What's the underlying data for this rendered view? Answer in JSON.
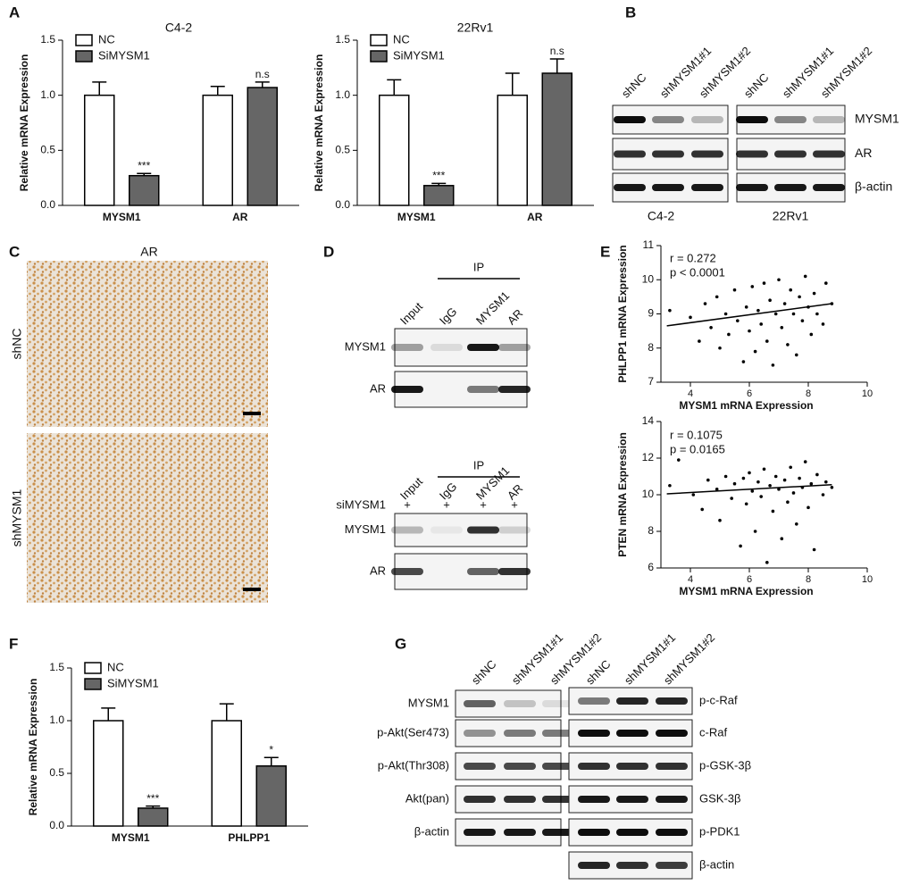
{
  "chart_data": [
    {
      "type": "bar",
      "title": "C4-2",
      "y_label": "Relative mRNA Expression",
      "categories": [
        "MYSM1",
        "AR"
      ],
      "series": [
        {
          "name": "NC",
          "color": "#ffffff",
          "values": [
            1.0,
            1.0
          ],
          "errors": [
            0.12,
            0.08
          ]
        },
        {
          "name": "SiMYSM1",
          "color": "#666666",
          "values": [
            0.27,
            1.07
          ],
          "errors": [
            0.02,
            0.05
          ],
          "annotations": [
            "***",
            "n.s"
          ]
        }
      ],
      "ylim": [
        0,
        1.5
      ],
      "yticks": [
        {
          "value": 0,
          "label": "0.0"
        },
        {
          "value": 0.5,
          "label": "0.5"
        },
        {
          "value": 1,
          "label": "1.0"
        },
        {
          "value": 1.5,
          "label": "1.5"
        }
      ]
    },
    {
      "type": "bar",
      "title": "22Rv1",
      "y_label": "Relative mRNA Expression",
      "categories": [
        "MYSM1",
        "AR"
      ],
      "series": [
        {
          "name": "NC",
          "color": "#ffffff",
          "values": [
            1.0,
            1.0
          ],
          "errors": [
            0.14,
            0.2
          ]
        },
        {
          "name": "SiMYSM1",
          "color": "#666666",
          "values": [
            0.18,
            1.2
          ],
          "errors": [
            0.02,
            0.13
          ],
          "annotations": [
            "***",
            "n.s"
          ]
        }
      ],
      "ylim": [
        0,
        1.5
      ],
      "yticks": [
        {
          "value": 0,
          "label": "0.0"
        },
        {
          "value": 0.5,
          "label": "0.5"
        },
        {
          "value": 1,
          "label": "1.0"
        },
        {
          "value": 1.5,
          "label": "1.5"
        }
      ]
    },
    {
      "type": "scatter",
      "x_label": "MYSM1 mRNA Expression",
      "y_label": "PHLPP1 mRNA Expression",
      "annotations": [
        "r = 0.272",
        "p < 0.0001"
      ],
      "color": "#000000",
      "x": [
        3.3,
        4.0,
        4.3,
        4.5,
        4.7,
        4.9,
        5.0,
        5.2,
        5.3,
        5.5,
        5.6,
        5.8,
        5.9,
        6.0,
        6.1,
        6.2,
        6.3,
        6.4,
        6.5,
        6.6,
        6.7,
        6.8,
        6.9,
        7.0,
        7.1,
        7.2,
        7.3,
        7.4,
        7.5,
        7.6,
        7.7,
        7.8,
        7.9,
        8.0,
        8.1,
        8.2,
        8.3,
        8.5,
        8.6,
        8.8
      ],
      "y": [
        9.1,
        8.9,
        8.2,
        9.3,
        8.6,
        9.5,
        8.0,
        9.0,
        8.4,
        9.7,
        8.8,
        7.6,
        9.2,
        8.5,
        9.8,
        7.9,
        9.1,
        8.7,
        9.9,
        8.2,
        9.4,
        7.5,
        9.0,
        10.0,
        8.6,
        9.3,
        8.1,
        9.7,
        9.0,
        7.8,
        9.5,
        8.8,
        10.1,
        9.2,
        8.4,
        9.6,
        9.0,
        8.7,
        9.9,
        9.3
      ],
      "trend": {
        "x": [
          3.2,
          8.8
        ],
        "y": [
          8.65,
          9.3
        ]
      },
      "xlim": [
        3,
        10
      ],
      "ylim": [
        7,
        11
      ],
      "xticks": [
        4,
        6,
        8,
        10
      ],
      "yticks": [
        7,
        8,
        9,
        10,
        11
      ]
    },
    {
      "type": "scatter",
      "x_label": "MYSM1 mRNA Expression",
      "y_label": "PTEN mRNA Expression",
      "annotations": [
        "r = 0.1075",
        "p = 0.0165"
      ],
      "color": "#000000",
      "x": [
        3.3,
        3.6,
        4.1,
        4.4,
        4.6,
        4.9,
        5.0,
        5.2,
        5.4,
        5.5,
        5.7,
        5.8,
        5.9,
        6.0,
        6.1,
        6.2,
        6.3,
        6.4,
        6.5,
        6.6,
        6.7,
        6.8,
        6.9,
        7.0,
        7.1,
        7.2,
        7.3,
        7.4,
        7.5,
        7.6,
        7.7,
        7.8,
        7.9,
        8.0,
        8.1,
        8.2,
        8.3,
        8.5,
        8.6,
        8.8
      ],
      "y": [
        10.5,
        11.9,
        10.0,
        9.2,
        10.8,
        10.3,
        8.6,
        11.0,
        9.8,
        10.6,
        7.2,
        10.9,
        9.5,
        11.2,
        10.2,
        8.0,
        10.7,
        9.9,
        11.4,
        6.3,
        10.5,
        9.1,
        11.0,
        10.3,
        7.6,
        10.8,
        9.6,
        11.5,
        10.1,
        8.4,
        10.9,
        10.4,
        11.8,
        9.3,
        10.6,
        7.0,
        11.1,
        10.0,
        10.7,
        10.4
      ],
      "trend": {
        "x": [
          3.2,
          8.8
        ],
        "y": [
          10.05,
          10.55
        ]
      },
      "xlim": [
        3,
        10
      ],
      "ylim": [
        6,
        14
      ],
      "xticks": [
        4,
        6,
        8,
        10
      ],
      "yticks": [
        6,
        8,
        10,
        12,
        14
      ]
    },
    {
      "type": "bar",
      "y_label": "Relative mRNA Expression",
      "categories": [
        "MYSM1",
        "PHLPP1"
      ],
      "series": [
        {
          "name": "NC",
          "color": "#ffffff",
          "values": [
            1.0,
            1.0
          ],
          "errors": [
            0.12,
            0.16
          ]
        },
        {
          "name": "SiMYSM1",
          "color": "#666666",
          "values": [
            0.17,
            0.57
          ],
          "errors": [
            0.02,
            0.08
          ],
          "annotations": [
            "***",
            "*"
          ]
        }
      ],
      "ylim": [
        0,
        1.5
      ],
      "yticks": [
        {
          "value": 0,
          "label": "0.0"
        },
        {
          "value": 0.5,
          "label": "0.5"
        },
        {
          "value": 1,
          "label": "1.0"
        },
        {
          "value": 1.5,
          "label": "1.5"
        }
      ]
    }
  ],
  "figure": {
    "panel_letters": [
      "A",
      "B",
      "C",
      "D",
      "E",
      "F",
      "G"
    ],
    "B": {
      "lanes": [
        "shNC",
        "shMYSM1#1",
        "shMYSM1#2",
        "shNC",
        "shMYSM1#1",
        "shMYSM1#2"
      ],
      "proteins": [
        "MYSM1",
        "AR",
        "β-actin"
      ],
      "cell_lines": [
        "C4-2",
        "22Rv1"
      ]
    },
    "C": {
      "title": "AR",
      "rows": [
        "shNC",
        "shMYSM1"
      ]
    },
    "D": {
      "ip": "IP",
      "lanes": [
        "Input",
        "IgG",
        "MYSM1",
        "AR"
      ],
      "proteins": [
        "MYSM1",
        "AR"
      ],
      "treatment": "siMYSM1",
      "treatment_marks": [
        "+",
        "+",
        "+",
        "+"
      ]
    },
    "G": {
      "lanes": [
        "shNC",
        "shMYSM1#1",
        "shMYSM1#2",
        "shNC",
        "shMYSM1#1",
        "shMYSM1#2"
      ],
      "left_proteins": [
        "MYSM1",
        "p-Akt(Ser473)",
        "p-Akt(Thr308)",
        "Akt(pan)",
        "β-actin"
      ],
      "right_proteins": [
        "p-c-Raf",
        "c-Raf",
        "p-GSK-3β",
        "GSK-3β",
        "p-PDK1",
        "β-actin"
      ]
    }
  }
}
